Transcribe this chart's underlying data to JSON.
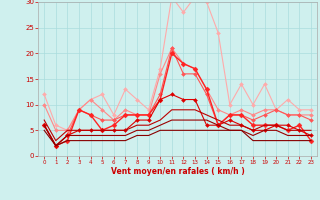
{
  "background_color": "#cff0ee",
  "grid_color": "#aadddd",
  "xlabel": "Vent moyen/en rafales ( km/h )",
  "xlim": [
    -0.5,
    23.5
  ],
  "ylim": [
    0,
    30
  ],
  "yticks": [
    0,
    5,
    10,
    15,
    20,
    25,
    30
  ],
  "xticks": [
    0,
    1,
    2,
    3,
    4,
    5,
    6,
    7,
    8,
    9,
    10,
    11,
    12,
    13,
    14,
    15,
    16,
    17,
    18,
    19,
    20,
    21,
    22,
    23
  ],
  "series": [
    {
      "color": "#ffaaaa",
      "lw": 0.8,
      "marker": "D",
      "ms": 2.0,
      "data": [
        12,
        6,
        5,
        9,
        11,
        12,
        8,
        13,
        11,
        9,
        17,
        31,
        28,
        31,
        30,
        24,
        10,
        14,
        10,
        14,
        9,
        11,
        9,
        9
      ]
    },
    {
      "color": "#ff8888",
      "lw": 0.8,
      "marker": "D",
      "ms": 2.0,
      "data": [
        10,
        5,
        5,
        9,
        11,
        9,
        7,
        9,
        8,
        8,
        16,
        21,
        18,
        17,
        13,
        9,
        8,
        9,
        8,
        9,
        9,
        8,
        8,
        8
      ]
    },
    {
      "color": "#ff5555",
      "lw": 0.8,
      "marker": "D",
      "ms": 2.0,
      "data": [
        6,
        2,
        4,
        9,
        8,
        7,
        7,
        8,
        8,
        8,
        12,
        21,
        16,
        16,
        12,
        6,
        8,
        8,
        7,
        8,
        9,
        8,
        8,
        7
      ]
    },
    {
      "color": "#ff2222",
      "lw": 1.0,
      "marker": "D",
      "ms": 2.5,
      "data": [
        6,
        2,
        3,
        9,
        8,
        5,
        6,
        8,
        8,
        8,
        11,
        20,
        18,
        17,
        13,
        6,
        8,
        8,
        6,
        6,
        6,
        5,
        6,
        3
      ]
    },
    {
      "color": "#dd0000",
      "lw": 0.8,
      "marker": "D",
      "ms": 2.0,
      "data": [
        6,
        2,
        4,
        5,
        5,
        5,
        5,
        5,
        7,
        7,
        11,
        12,
        11,
        11,
        6,
        6,
        7,
        6,
        5,
        5,
        6,
        6,
        5,
        4
      ]
    },
    {
      "color": "#bb0000",
      "lw": 0.8,
      "marker": null,
      "ms": 0,
      "data": [
        7,
        3,
        5,
        5,
        5,
        5,
        5,
        5,
        6,
        6,
        7,
        9,
        9,
        9,
        8,
        7,
        6,
        6,
        5,
        6,
        6,
        5,
        5,
        5
      ]
    },
    {
      "color": "#990000",
      "lw": 0.8,
      "marker": null,
      "ms": 0,
      "data": [
        6,
        2,
        4,
        4,
        4,
        4,
        4,
        4,
        5,
        5,
        6,
        7,
        7,
        7,
        7,
        6,
        5,
        5,
        4,
        5,
        5,
        4,
        4,
        4
      ]
    },
    {
      "color": "#880000",
      "lw": 0.8,
      "marker": null,
      "ms": 0,
      "data": [
        5,
        2,
        3,
        3,
        3,
        3,
        3,
        3,
        4,
        4,
        5,
        5,
        5,
        5,
        5,
        5,
        5,
        5,
        3,
        3,
        3,
        3,
        3,
        3
      ]
    }
  ]
}
